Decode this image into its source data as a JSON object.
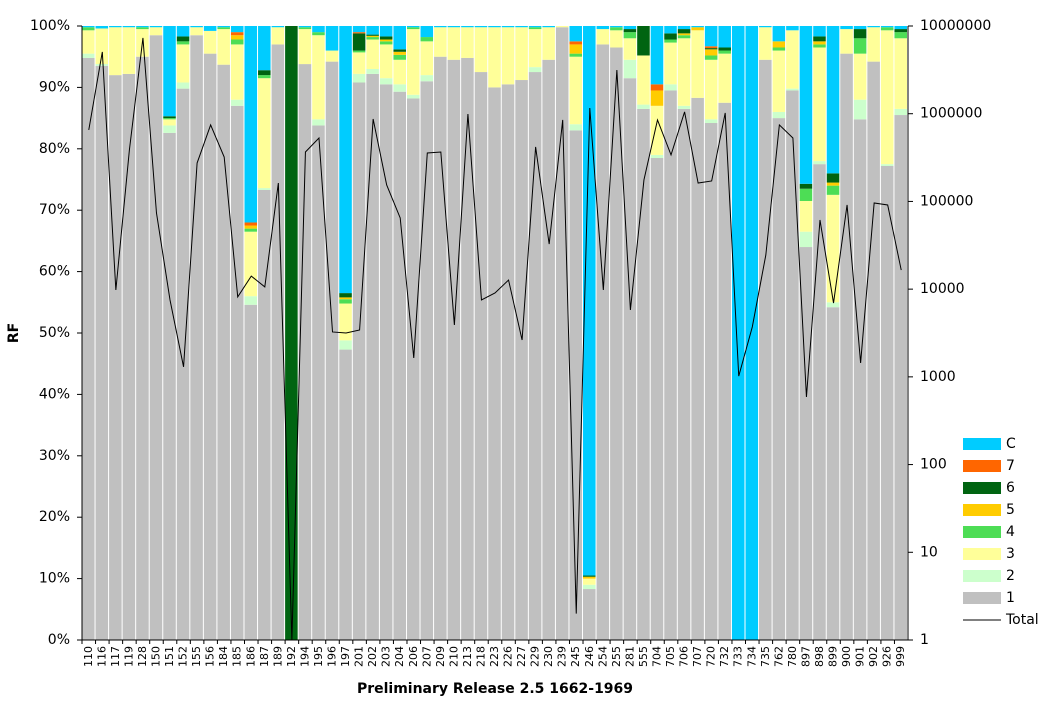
{
  "chart_data": {
    "type": "bar",
    "stacked": true,
    "y_label": "RF",
    "x_label": "Preliminary Release 2.5 1662-1969",
    "legend": "right",
    "y2scale": "log",
    "categories": [
      "110",
      "116",
      "117",
      "119",
      "128",
      "150",
      "151",
      "152",
      "155",
      "156",
      "184",
      "185",
      "186",
      "187",
      "189",
      "192",
      "194",
      "195",
      "196",
      "197",
      "201",
      "202",
      "203",
      "204",
      "206",
      "207",
      "209",
      "210",
      "213",
      "218",
      "223",
      "226",
      "227",
      "229",
      "230",
      "239",
      "245",
      "246",
      "254",
      "255",
      "281",
      "555",
      "704",
      "705",
      "706",
      "707",
      "720",
      "732",
      "733",
      "734",
      "735",
      "762",
      "780",
      "897",
      "898",
      "899",
      "900",
      "901",
      "902",
      "926",
      "999"
    ],
    "ylim": [
      0,
      100
    ],
    "yticks": [
      {
        "value": 0,
        "label": "0%"
      },
      {
        "value": 10,
        "label": "10%"
      },
      {
        "value": 20,
        "label": "20%"
      },
      {
        "value": 30,
        "label": "30%"
      },
      {
        "value": 40,
        "label": "40%"
      },
      {
        "value": 50,
        "label": "50%"
      },
      {
        "value": 60,
        "label": "60%"
      },
      {
        "value": 70,
        "label": "70%"
      },
      {
        "value": 80,
        "label": "80%"
      },
      {
        "value": 90,
        "label": "90%"
      },
      {
        "value": 100,
        "label": "100%"
      }
    ],
    "y2lim": [
      1,
      10000000
    ],
    "y2ticks": [
      1,
      10,
      100,
      1000,
      10000,
      100000,
      1000000,
      10000000
    ],
    "series": [
      {
        "name": "1",
        "color": "#c0c0c0",
        "values": [
          94.8,
          93.5,
          92,
          92.2,
          95,
          98.5,
          82.6,
          89.8,
          98.5,
          95.5,
          93.7,
          87,
          54.6,
          73.3,
          97,
          0,
          93.8,
          83.8,
          94.2,
          47.3,
          90.8,
          92.2,
          90.5,
          89.3,
          88.2,
          91,
          95,
          94.5,
          94.8,
          92.5,
          90,
          90.5,
          91.2,
          92.5,
          94.5,
          99.8,
          83,
          8.3,
          97,
          96.5,
          91.5,
          86.5,
          78.5,
          89.5,
          86.5,
          88.3,
          84.2,
          87.5,
          0,
          0,
          94.5,
          85,
          89.5,
          64,
          77.5,
          54.2,
          95.5,
          84.8,
          94.2,
          77.2,
          85.5
        ]
      },
      {
        "name": "2",
        "color": "#ccffcc",
        "values": [
          0.7,
          0.3,
          0,
          0,
          0,
          0,
          1.2,
          1,
          0,
          0,
          0,
          1,
          1.4,
          0.3,
          0,
          0,
          0,
          1,
          0,
          1.5,
          1.4,
          0.8,
          1,
          1.2,
          0.6,
          1,
          0,
          0,
          0,
          0,
          0,
          0,
          0,
          0.8,
          0,
          0,
          1,
          0.7,
          0,
          0,
          3,
          0.7,
          0.5,
          1,
          0.5,
          0,
          0.6,
          0,
          0,
          0,
          0,
          1,
          0.3,
          2.5,
          0.5,
          0.8,
          0,
          3.2,
          0,
          0.3,
          1
        ]
      },
      {
        "name": "3",
        "color": "#ffff99",
        "values": [
          3.8,
          5.8,
          7.8,
          7.6,
          4.5,
          1.3,
          1,
          6.2,
          1.3,
          3.7,
          5.8,
          9,
          10.5,
          17.9,
          2.8,
          0,
          5.7,
          13.7,
          1.8,
          6,
          3.5,
          4.8,
          5.5,
          4,
          10.7,
          5.5,
          4.8,
          5.3,
          5,
          7.3,
          9.8,
          9.3,
          8.6,
          6.2,
          5.3,
          0.2,
          11,
          1,
          2.5,
          2.8,
          3.5,
          8,
          8,
          6.8,
          11,
          11,
          9.7,
          8,
          0,
          0,
          5.3,
          10,
          9.5,
          5,
          18.5,
          17.5,
          4,
          7.5,
          5.6,
          21.8,
          11.5
        ]
      },
      {
        "name": "4",
        "color": "#4ddd55",
        "values": [
          0.5,
          0,
          0,
          0,
          0.3,
          0,
          0.2,
          0.5,
          0,
          0,
          0.3,
          0.8,
          0.5,
          0.5,
          0,
          0,
          0.3,
          0.5,
          0,
          0.7,
          0.3,
          0.4,
          0.5,
          0.8,
          0.3,
          0.7,
          0,
          0,
          0,
          0,
          0,
          0,
          0,
          0.3,
          0,
          0,
          0.5,
          0,
          0,
          0.5,
          1,
          0,
          0,
          0.5,
          0.5,
          0,
          0.7,
          0.5,
          0,
          0,
          0,
          0.5,
          0,
          2,
          0.5,
          1.5,
          0,
          2.5,
          0,
          0.5,
          1
        ]
      },
      {
        "name": "5",
        "color": "#ffcc00",
        "values": [
          0,
          0,
          0,
          0,
          0,
          0,
          0,
          0,
          0,
          0,
          0,
          0.7,
          0.5,
          0,
          0,
          0,
          0,
          0,
          0,
          0.3,
          0,
          0.2,
          0.3,
          0.5,
          0,
          0,
          0,
          0,
          0,
          0,
          0,
          0,
          0,
          0,
          0,
          0,
          1.5,
          0.3,
          0,
          0,
          0,
          0,
          2.5,
          0,
          0.3,
          0.5,
          1,
          0,
          0,
          0,
          0,
          1,
          0,
          0,
          0.5,
          0.5,
          0,
          0,
          0,
          0,
          0
        ]
      },
      {
        "name": "6",
        "color": "#006411",
        "values": [
          0,
          0,
          0,
          0,
          0,
          0,
          0.3,
          0.8,
          0,
          0,
          0,
          0,
          0,
          0.8,
          0,
          100,
          0,
          0,
          0,
          0.7,
          2.8,
          0.2,
          0.5,
          0.4,
          0,
          0,
          0,
          0,
          0,
          0,
          0,
          0,
          0,
          0,
          0,
          0,
          0,
          0.2,
          0,
          0,
          0.5,
          4.8,
          0,
          1,
          0.7,
          0,
          0.2,
          0.5,
          0,
          0,
          0,
          0,
          0,
          0.8,
          0.8,
          1.5,
          0,
          1.5,
          0,
          0,
          0.5
        ]
      },
      {
        "name": "7",
        "color": "#ff6600",
        "values": [
          0,
          0,
          0,
          0,
          0,
          0,
          0,
          0,
          0,
          0,
          0,
          0.5,
          0.5,
          0,
          0,
          0,
          0,
          0,
          0,
          0,
          0.2,
          0,
          0,
          0,
          0,
          0,
          0,
          0,
          0,
          0,
          0,
          0,
          0,
          0,
          0,
          0,
          0.5,
          0,
          0,
          0,
          0,
          0,
          1,
          0,
          0,
          0,
          0.3,
          0,
          0,
          0,
          0,
          0,
          0,
          0,
          0,
          0,
          0,
          0,
          0,
          0,
          0
        ]
      },
      {
        "name": "C",
        "color": "#00ccff",
        "values": [
          0.2,
          0.4,
          0.2,
          0.2,
          0.2,
          0.2,
          14.7,
          1.7,
          0.2,
          0.8,
          0.2,
          1,
          32,
          7.2,
          0.2,
          0,
          0.2,
          1,
          4,
          43.5,
          1,
          1.4,
          1.7,
          3.8,
          0.2,
          1.8,
          0.2,
          0.2,
          0.2,
          0.2,
          0.2,
          0.2,
          0.2,
          0.2,
          0.2,
          0,
          2.5,
          89.5,
          0.5,
          0.2,
          0.5,
          0,
          9.5,
          1.2,
          0.5,
          0.2,
          3.3,
          3.5,
          100,
          100,
          0.2,
          2.5,
          0.7,
          25.7,
          1.7,
          24,
          0.5,
          0.5,
          0.2,
          0.2,
          0.5
        ]
      },
      {
        "name": "Total",
        "color": "#000000",
        "type": "line",
        "axis": "y2",
        "values": [
          653000,
          5060000,
          9780,
          386000,
          7310000,
          73800,
          7520,
          1300,
          274000,
          745000,
          321000,
          8150,
          14100,
          10600,
          162000,
          1,
          366000,
          529000,
          3250,
          3160,
          3420,
          871000,
          154000,
          64800,
          1640,
          357000,
          366000,
          3900,
          993000,
          7520,
          9040,
          12700,
          2630,
          418000,
          32700,
          849000,
          2,
          1160000,
          9780,
          3150000,
          5790,
          176000,
          849000,
          339000,
          1050000,
          162000,
          171000,
          1020000,
          1020,
          3700,
          24500,
          745000,
          529000,
          590,
          61400,
          6950,
          91100,
          1440,
          96000,
          91100,
          16500
        ]
      }
    ]
  }
}
